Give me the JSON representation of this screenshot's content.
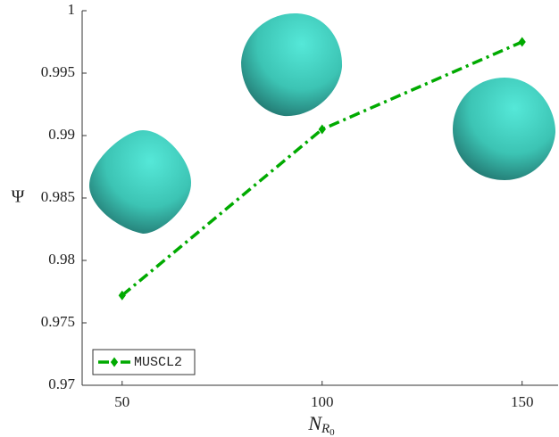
{
  "chart_data": {
    "type": "line",
    "xlabel": {
      "base": "N",
      "sub": "R",
      "subsub": "0"
    },
    "ylabel": "Ψ",
    "x": [
      50,
      100,
      150
    ],
    "series": [
      {
        "name": "MUSCL2",
        "color": "#00aa00",
        "values": [
          0.9772,
          0.9905,
          0.9975
        ]
      }
    ],
    "xlim": [
      40,
      159
    ],
    "xticks": [
      50,
      100,
      150
    ],
    "ylim": [
      0.97,
      1
    ],
    "yticks": [
      0.97,
      0.975,
      0.98,
      0.985,
      0.99,
      0.995,
      1
    ],
    "legend": "lower-left"
  }
}
